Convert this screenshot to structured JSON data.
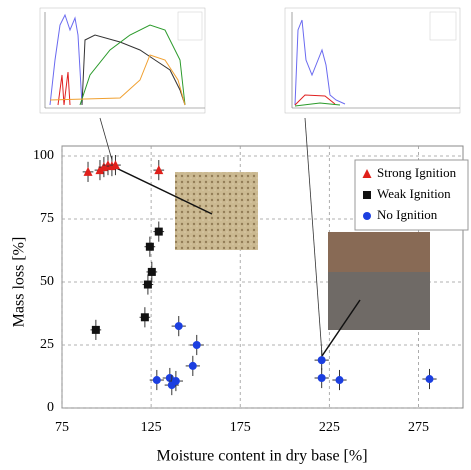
{
  "chart_data": {
    "type": "scatter",
    "x_label": "Moisture content in dry base [%]",
    "y_label": "Mass loss [%]",
    "xlim": [
      75,
      300
    ],
    "ylim": [
      0,
      100
    ],
    "xticks": [
      75,
      125,
      175,
      225,
      275
    ],
    "yticks": [
      0,
      25,
      50,
      75,
      100
    ],
    "grid": true,
    "legend": "upper right",
    "series": [
      {
        "name": "Strong Ignition",
        "color": "#e0201b",
        "marker": "triangle",
        "x": [
          89.6,
          96.3,
          98.5,
          100.8,
          103,
          105,
          129.3
        ],
        "values": [
          93.7,
          94.4,
          95.6,
          96.4,
          96,
          96.4,
          94.4
        ],
        "xerr": [
          3,
          3,
          3,
          3,
          3,
          3,
          3
        ],
        "yerr": [
          4,
          4,
          4,
          4,
          4,
          4,
          4
        ]
      },
      {
        "name": "Weak Ignition",
        "color": "#111111",
        "marker": "square",
        "x": [
          94,
          121.5,
          123.2,
          125.4,
          124.3,
          129.3
        ],
        "values": [
          31,
          36,
          49,
          54,
          64,
          70
        ],
        "xerr": [
          3,
          3,
          3,
          3,
          3,
          3
        ],
        "yerr": [
          4,
          4,
          4,
          4,
          4,
          4
        ]
      },
      {
        "name": "No Ignition",
        "color": "#1c3fe0",
        "marker": "circle",
        "x": [
          128.2,
          135.5,
          136.6,
          138.9,
          140.5,
          148.4,
          150.6,
          220.7,
          220.7,
          230.7,
          281.2
        ],
        "values": [
          11.1,
          11.9,
          9.1,
          10.7,
          32.5,
          16.7,
          25,
          19,
          11.9,
          11.1,
          11.5
        ],
        "xerr": [
          4,
          4,
          4,
          4,
          4,
          4,
          4,
          4,
          4,
          4,
          4
        ],
        "yerr": [
          4,
          4,
          4,
          4,
          4,
          4,
          4,
          4,
          4,
          4,
          4
        ]
      }
    ]
  }
}
